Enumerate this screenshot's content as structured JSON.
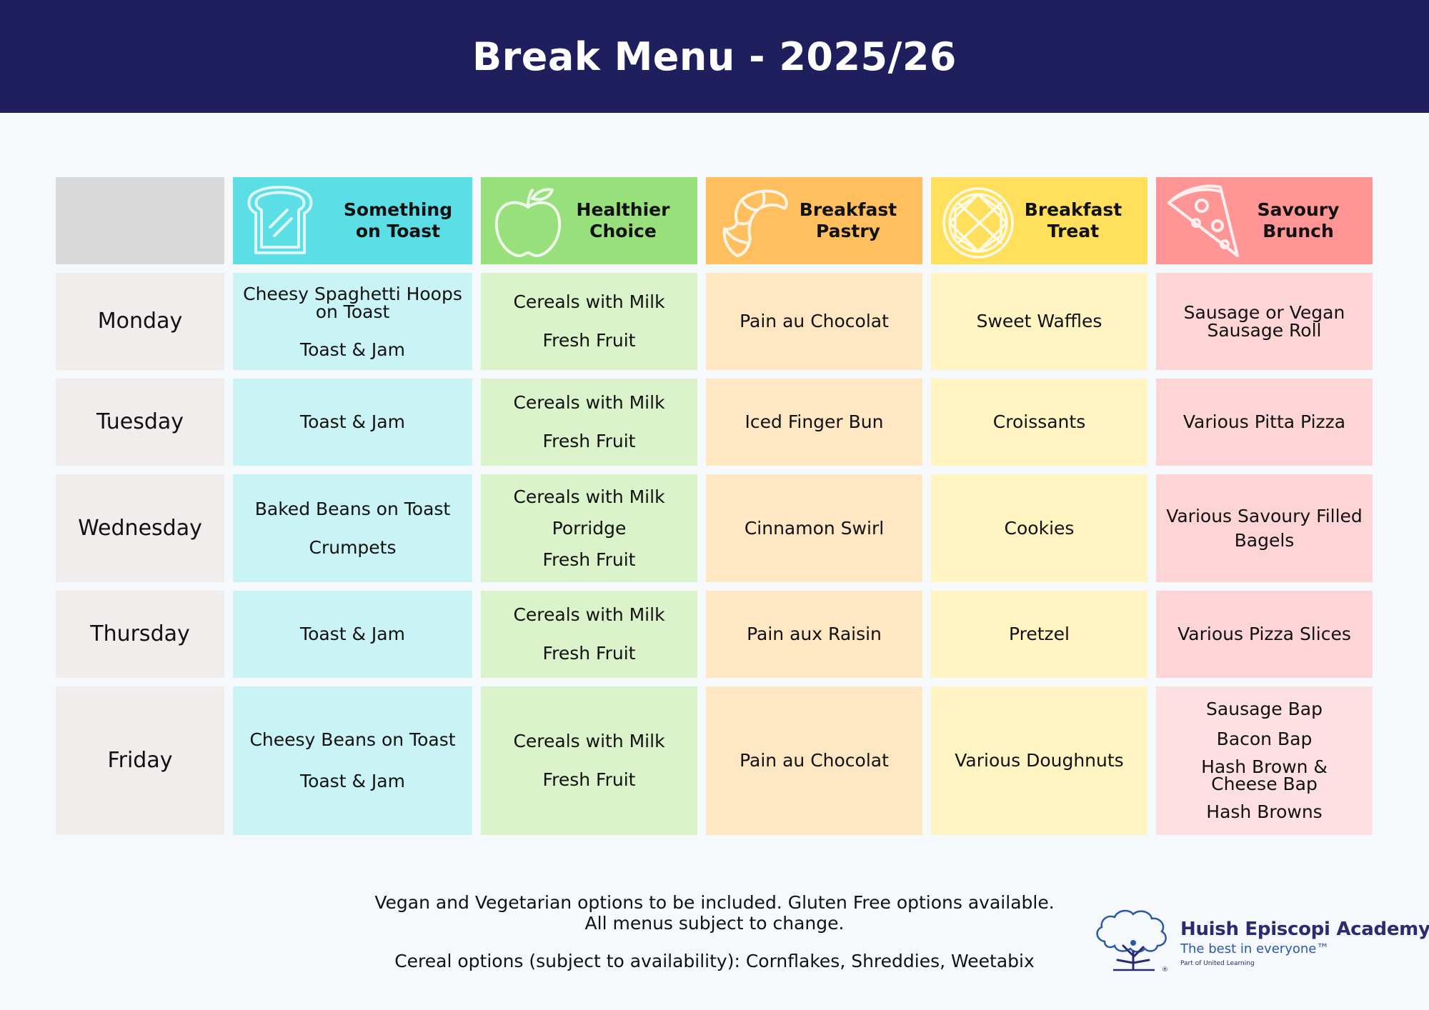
{
  "title": "Break Menu - 2025/26",
  "columns": [
    {
      "label": "Something on Toast",
      "line1": "Something",
      "line2": "on Toast",
      "icon": "toast-icon",
      "color": "#5bdee6"
    },
    {
      "label": "Healthier Choice",
      "line1": "Healthier",
      "line2": "Choice",
      "icon": "apple-icon",
      "color": "#98e07b"
    },
    {
      "label": "Breakfast Pastry",
      "line1": "Breakfast",
      "line2": "Pastry",
      "icon": "croissant-icon",
      "color": "#ffbf5f"
    },
    {
      "label": "Breakfast Treat",
      "line1": "Breakfast",
      "line2": "Treat",
      "icon": "waffle-icon",
      "color": "#ffdf5c"
    },
    {
      "label": "Savoury Brunch",
      "line1": "Savoury",
      "line2": "Brunch",
      "icon": "pizza-slice-icon",
      "color": "#ff9595"
    }
  ],
  "rows": [
    {
      "day": "Monday",
      "toast": [
        "Cheesy Spaghetti Hoops on Toast",
        "Toast & Jam"
      ],
      "healthy": [
        "Cereals with Milk",
        "Fresh Fruit"
      ],
      "pastry": [
        "Pain au Chocolat"
      ],
      "treat": [
        "Sweet Waffles"
      ],
      "brunch": [
        "Sausage or Vegan Sausage Roll"
      ]
    },
    {
      "day": "Tuesday",
      "toast": [
        "Toast & Jam"
      ],
      "healthy": [
        "Cereals with Milk",
        "Fresh Fruit"
      ],
      "pastry": [
        "Iced Finger Bun"
      ],
      "treat": [
        "Croissants"
      ],
      "brunch": [
        "Various Pitta Pizza"
      ]
    },
    {
      "day": "Wednesday",
      "toast": [
        "Baked Beans on Toast",
        "Crumpets"
      ],
      "healthy": [
        "Cereals with Milk",
        "Porridge",
        "Fresh Fruit"
      ],
      "pastry": [
        "Cinnamon Swirl"
      ],
      "treat": [
        "Cookies"
      ],
      "brunch": [
        "Various Savoury Filled Bagels"
      ]
    },
    {
      "day": "Thursday",
      "toast": [
        "Toast & Jam"
      ],
      "healthy": [
        "Cereals with Milk",
        "Fresh Fruit"
      ],
      "pastry": [
        "Pain aux Raisin"
      ],
      "treat": [
        "Pretzel"
      ],
      "brunch": [
        "Various Pizza Slices"
      ]
    },
    {
      "day": "Friday",
      "toast": [
        "Cheesy Beans on Toast",
        "Toast & Jam"
      ],
      "healthy": [
        "Cereals with Milk",
        "Fresh Fruit"
      ],
      "pastry": [
        "Pain au Chocolat"
      ],
      "treat": [
        "Various Doughnuts"
      ],
      "brunch": [
        "Sausage Bap",
        "Bacon Bap",
        "Hash Brown & Cheese Bap",
        "Hash Browns"
      ]
    }
  ],
  "notes": {
    "line1": "Vegan and Vegetarian options to be included. Gluten Free options available.",
    "line2": "All menus subject to change.",
    "line3": "Cereal options (subject to availability): Cornflakes, Shreddies, Weetabix"
  },
  "logo": {
    "name": "Huish Episcopi Academy",
    "tagline": "The best in everyone™",
    "sub": "Part of United Learning"
  },
  "colors": {
    "banner": "#201f5e",
    "background": "#f6f9fc",
    "day_cell": "#f1edec"
  }
}
